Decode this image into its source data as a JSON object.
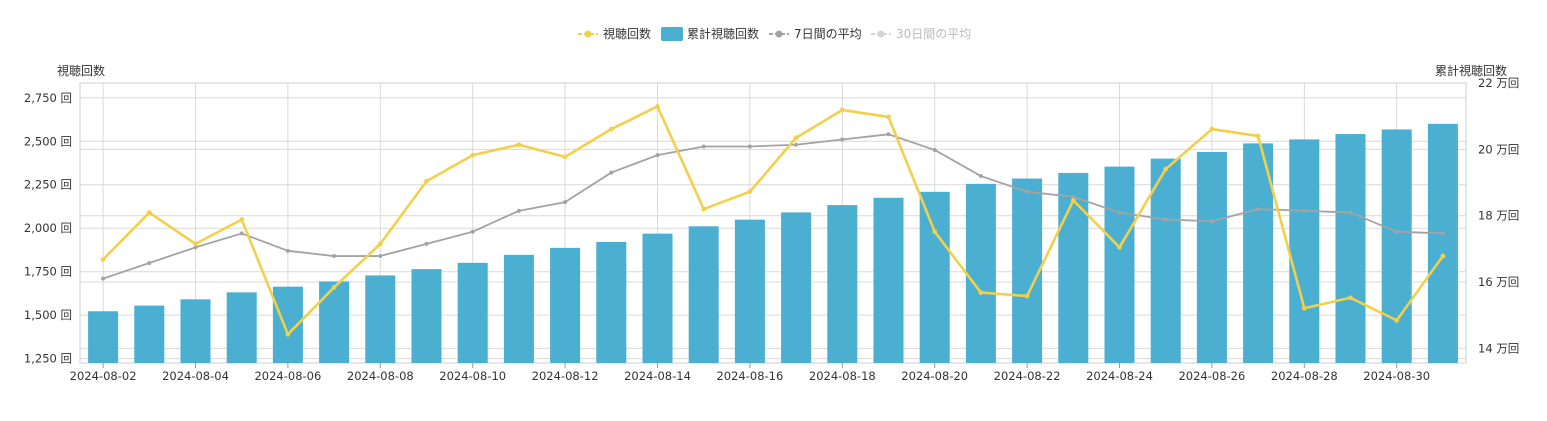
{
  "chart_data": {
    "type": "bar",
    "legend": {
      "placement": "top-center",
      "items": [
        {
          "label": "視聴回数",
          "kind": "line",
          "color": "#f2d04a",
          "enabled": true
        },
        {
          "label": "累計視聴回数",
          "kind": "bar",
          "color": "#4bafd1",
          "enabled": true
        },
        {
          "label": "7日間の平均",
          "kind": "line",
          "color": "#a3a3a3",
          "enabled": true
        },
        {
          "label": "30日間の平均",
          "kind": "line",
          "color": "#d4d4d4",
          "enabled": false
        }
      ]
    },
    "y_left": {
      "title": "視聴回数",
      "range": [
        1225,
        2835
      ],
      "ticks": [
        1250,
        1500,
        1750,
        2000,
        2250,
        2500,
        2750
      ],
      "tick_labels": [
        "1,250 回",
        "1,500 回",
        "1,750 回",
        "2,000 回",
        "2,250 回",
        "2,500 回",
        "2,750 回"
      ]
    },
    "y_right": {
      "title": "累計視聴回数",
      "range": [
        135600,
        220000
      ],
      "ticks": [
        140000,
        160000,
        180000,
        200000,
        220000
      ],
      "tick_labels": [
        "14 万回",
        "16 万回",
        "18 万回",
        "20 万回",
        "22 万回"
      ]
    },
    "x_tick_labels": [
      "2024-08-02",
      "2024-08-04",
      "2024-08-06",
      "2024-08-08",
      "2024-08-10",
      "2024-08-12",
      "2024-08-14",
      "2024-08-16",
      "2024-08-18",
      "2024-08-20",
      "2024-08-22",
      "2024-08-24",
      "2024-08-26",
      "2024-08-28",
      "2024-08-30"
    ],
    "grid": true,
    "categories": [
      "2024-08-02",
      "2024-08-03",
      "2024-08-04",
      "2024-08-05",
      "2024-08-06",
      "2024-08-07",
      "2024-08-08",
      "2024-08-09",
      "2024-08-10",
      "2024-08-11",
      "2024-08-12",
      "2024-08-13",
      "2024-08-14",
      "2024-08-15",
      "2024-08-16",
      "2024-08-17",
      "2024-08-18",
      "2024-08-19",
      "2024-08-20",
      "2024-08-21",
      "2024-08-22",
      "2024-08-23",
      "2024-08-24",
      "2024-08-25",
      "2024-08-26",
      "2024-08-27",
      "2024-08-28",
      "2024-08-29",
      "2024-08-30",
      "2024-08-31"
    ],
    "series": [
      {
        "name": "累計視聴回数",
        "type": "bar",
        "axis": "right",
        "color": "#4bafd1",
        "values": [
          151200,
          152900,
          154800,
          156900,
          158600,
          160200,
          162000,
          163900,
          165800,
          168200,
          170300,
          172100,
          174600,
          176800,
          178800,
          181000,
          183200,
          185400,
          187200,
          189600,
          191200,
          192900,
          194800,
          197200,
          199200,
          201800,
          203000,
          204600,
          206000,
          207700
        ]
      },
      {
        "name": "視聴回数",
        "type": "line",
        "axis": "left",
        "color": "#f2d04a",
        "values": [
          1820,
          2090,
          1910,
          2050,
          1390,
          1660,
          1910,
          2270,
          2420,
          2480,
          2410,
          2570,
          2700,
          2110,
          2210,
          2520,
          2680,
          2640,
          1980,
          1630,
          1610,
          2160,
          1890,
          2340,
          2570,
          2530,
          1540,
          1600,
          1470,
          1840
        ]
      },
      {
        "name": "7日間の平均",
        "type": "line",
        "axis": "left",
        "color": "#a3a3a3",
        "values": [
          1710,
          1800,
          1890,
          1970,
          1870,
          1840,
          1840,
          1910,
          1980,
          2100,
          2150,
          2320,
          2420,
          2470,
          2470,
          2480,
          2510,
          2540,
          2450,
          2300,
          2210,
          2180,
          2090,
          2050,
          2040,
          2110,
          2100,
          2090,
          1980,
          1970
        ]
      }
    ]
  }
}
